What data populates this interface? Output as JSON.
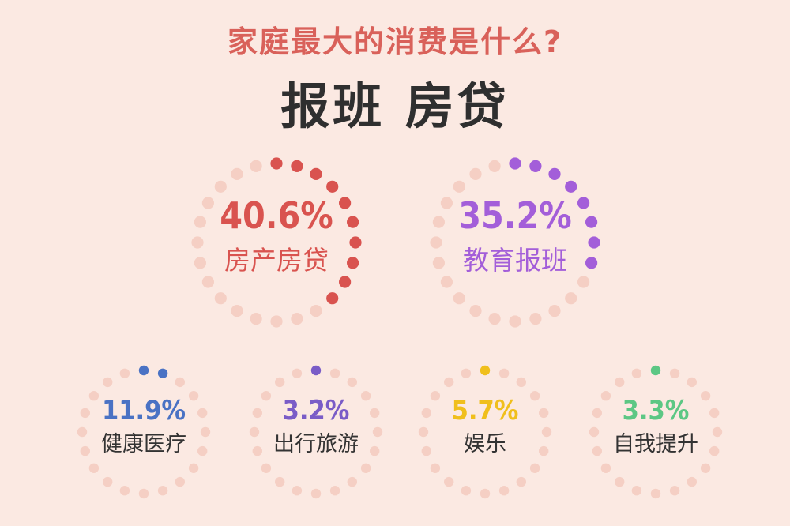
{
  "header": {
    "question": "家庭最大的消费是什么?",
    "headline": "报班 房贷"
  },
  "colors": {
    "background": "#fbe9e2",
    "track_dot": "#f5cfc4",
    "question": "#d9615a",
    "headline": "#2f2f2f"
  },
  "chart_data": {
    "type": "pie",
    "title": "家庭最大的消费是什么?",
    "subtitle": "报班 房贷",
    "unit": "%",
    "items": [
      {
        "label": "房产房贷",
        "value": 40.6,
        "value_text": "40.6%",
        "color": "#d9534f"
      },
      {
        "label": "教育报班",
        "value": 35.2,
        "value_text": "35.2%",
        "color": "#a35ed9"
      },
      {
        "label": "健康医疗",
        "value": 11.9,
        "value_text": "11.9%",
        "color": "#4a72c4"
      },
      {
        "label": "出行旅游",
        "value": 3.2,
        "value_text": "3.2%",
        "color": "#7a5cc7"
      },
      {
        "label": "娱乐",
        "value": 5.7,
        "value_text": "5.7%",
        "color": "#f0bf1c"
      },
      {
        "label": "自我提升",
        "value": 3.3,
        "value_text": "3.3%",
        "color": "#5cc784"
      }
    ]
  }
}
